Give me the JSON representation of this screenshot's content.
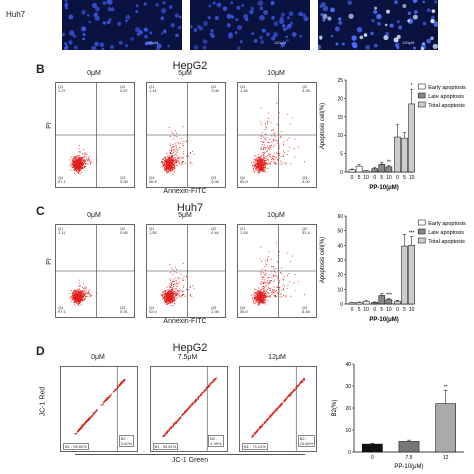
{
  "panelA": {
    "row_label": "Huh7",
    "scale_bars": [
      "100μM",
      "100μM",
      "100μM"
    ]
  },
  "panelB": {
    "letter": "B",
    "title": "HepG2",
    "conditions": [
      "0μM",
      "5μM",
      "10μM"
    ],
    "y_axis": "PI",
    "x_axis": "Annexin-FITC",
    "quadrants": [
      {
        "q1": "Q1\n1.27",
        "q2": "Q2\n0.87",
        "q3": "Q3\n0.85",
        "q4": "Q4\n97.1"
      },
      {
        "q1": "Q1\n1.41",
        "q2": "Q2\n1.06",
        "q3": "Q3\n0.98",
        "q4": "Q4\n96.5"
      },
      {
        "q1": "Q1\n1.84",
        "q2": "Q2\n4.26",
        "q3": "Q3\n4.00",
        "q4": "Q4\n89.9"
      }
    ]
  },
  "panelC": {
    "letter": "C",
    "title": "Huh7",
    "conditions": [
      "0μM",
      "5μM",
      "10μM"
    ],
    "y_axis": "PI",
    "x_axis": "Annexin-FITC",
    "quadrants": [
      {
        "q1": "Q1\n1.11",
        "q2": "Q2\n0.85",
        "q3": "Q3\n0.91",
        "q4": "Q4\n97.1"
      },
      {
        "q1": "Q1\n1.55",
        "q2": "Q2\n4.46",
        "q3": "Q3\n1.98",
        "q4": "Q4\n92.0"
      },
      {
        "q1": "Q1\n1.65",
        "q2": "Q2\n33.4",
        "q3": "Q3\n6.48",
        "q4": "Q4\n58.5"
      }
    ]
  },
  "panelD": {
    "letter": "D",
    "title": "HepG2",
    "conditions": [
      "0μM",
      "7.5μM",
      "12μM"
    ],
    "y_axis": "JC-1 Red",
    "x_axis": "JC-1 Green",
    "gates": [
      {
        "b1": "B1 : 96.60%",
        "b2": "B2 :\n3.40%"
      },
      {
        "b1": "B1 : 95.61%",
        "b2": "B2 :\n4.39%"
      },
      {
        "b1": "B1 : 75.14%",
        "b2": "B2 :\n24.86%"
      }
    ]
  },
  "chart_data": [
    {
      "type": "bar",
      "panel": "B",
      "categories": [
        "0",
        "5",
        "10"
      ],
      "xgroup_label": "PP-10(μM)",
      "ylabel": "Apoptosis cell(%)",
      "ylim": [
        0,
        25
      ],
      "yticks": [
        "0",
        "5",
        "10",
        "15",
        "20",
        "25"
      ],
      "series": [
        {
          "name": "Early apoptosis",
          "values": [
            0.6,
            1.6,
            0.3
          ],
          "errors": [
            0.2,
            0.4,
            0.1
          ],
          "fill": "#ffffff"
        },
        {
          "name": "Late apoptosis",
          "values": [
            0.9,
            2.1,
            1.4
          ],
          "errors": [
            0.3,
            0.5,
            0.4
          ],
          "fill": "#888888"
        },
        {
          "name": "Total apoptosis",
          "values": [
            9.5,
            9.2,
            18.5
          ],
          "errors": [
            3.5,
            1.5,
            4.0
          ],
          "fill": "#cccccc"
        }
      ],
      "markers": [
        "",
        "**",
        "*"
      ]
    },
    {
      "type": "bar",
      "panel": "C",
      "categories": [
        "0",
        "5",
        "10"
      ],
      "xgroup_label": "PP-10(μM)",
      "ylabel": "Apoptosis cell(%)",
      "ylim": [
        0,
        60
      ],
      "yticks": [
        "0",
        "10",
        "20",
        "30",
        "40",
        "50",
        "60"
      ],
      "series": [
        {
          "name": "Early apoptosis",
          "values": [
            0.8,
            1.1,
            1.8
          ],
          "errors": [
            0.2,
            0.3,
            0.4
          ],
          "fill": "#ffffff"
        },
        {
          "name": "Late apoptosis",
          "values": [
            1.1,
            5.8,
            3.0
          ],
          "errors": [
            0.3,
            1.2,
            0.8
          ],
          "fill": "#888888"
        },
        {
          "name": "Total apoptosis",
          "values": [
            2.0,
            39.5,
            40.0
          ],
          "errors": [
            0.5,
            8.0,
            6.0
          ],
          "fill": "#cccccc"
        }
      ],
      "markers": [
        "",
        "***",
        "***"
      ]
    },
    {
      "type": "bar",
      "panel": "D",
      "categories": [
        "0",
        "7.5",
        "12"
      ],
      "xlabel": "PP-10(μM)",
      "ylabel": "B2(%)",
      "ylim": [
        0,
        40
      ],
      "yticks": [
        "0",
        "10",
        "20",
        "30",
        "40"
      ],
      "values": [
        3.6,
        4.8,
        22.0
      ],
      "errors": [
        0.4,
        0.6,
        6.0
      ],
      "fills": [
        "#111111",
        "#777777",
        "#aaaaaa"
      ],
      "markers": [
        "",
        "",
        "**"
      ]
    }
  ]
}
